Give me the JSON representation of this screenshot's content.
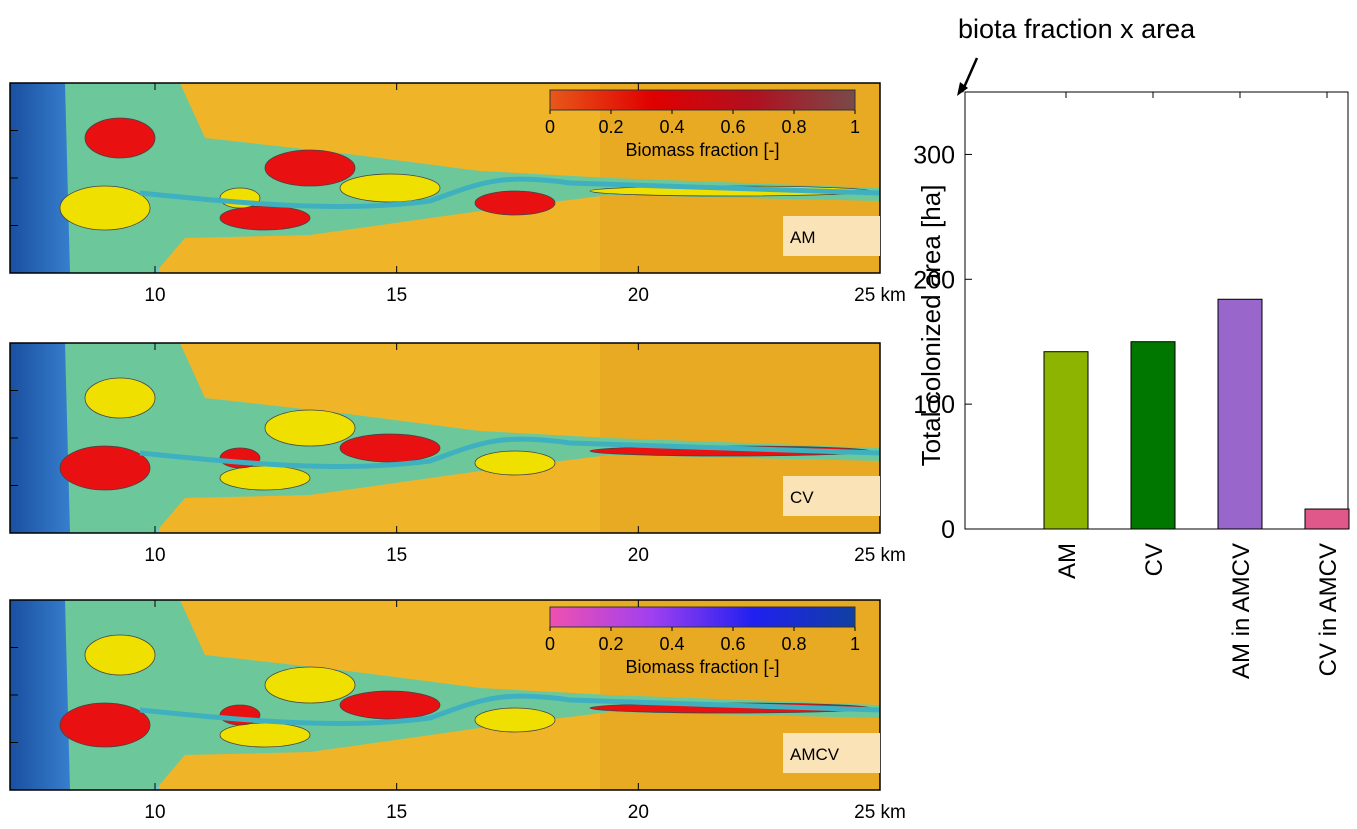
{
  "annotation": "biota fraction x area",
  "maps": {
    "xlim": [
      7,
      25
    ],
    "xticks": [
      10,
      15,
      20,
      {
        "value": 25,
        "label": "25 km"
      }
    ],
    "panels": [
      {
        "label": "AM",
        "colorbar": {
          "colors": [
            "#e8581a",
            "#e00000",
            "#b01020",
            "#7a4a4a"
          ],
          "ticks": [
            0,
            0.2,
            0.4,
            0.6,
            0.8,
            1
          ],
          "label": "Biomass fraction [-]"
        }
      },
      {
        "label": "CV"
      },
      {
        "label": "AMCV",
        "colorbar": {
          "colors": [
            "#f050b0",
            "#a040f0",
            "#2020f0",
            "#1040a0"
          ],
          "ticks": [
            0,
            0.2,
            0.4,
            0.6,
            0.8,
            1
          ],
          "label": "Biomass fraction [-]"
        }
      }
    ]
  },
  "chart_data": {
    "type": "bar",
    "ylabel": "Total colonized area [ha]",
    "categories": [
      "AM",
      "CV",
      "AM in AMCV",
      "CV in AMCV"
    ],
    "values": [
      142,
      150,
      184,
      16
    ],
    "colors": [
      "#8cb400",
      "#007800",
      "#9966cc",
      "#e0588a"
    ],
    "ylim": [
      0,
      350
    ],
    "yticks": [
      0,
      100,
      200,
      300
    ]
  }
}
